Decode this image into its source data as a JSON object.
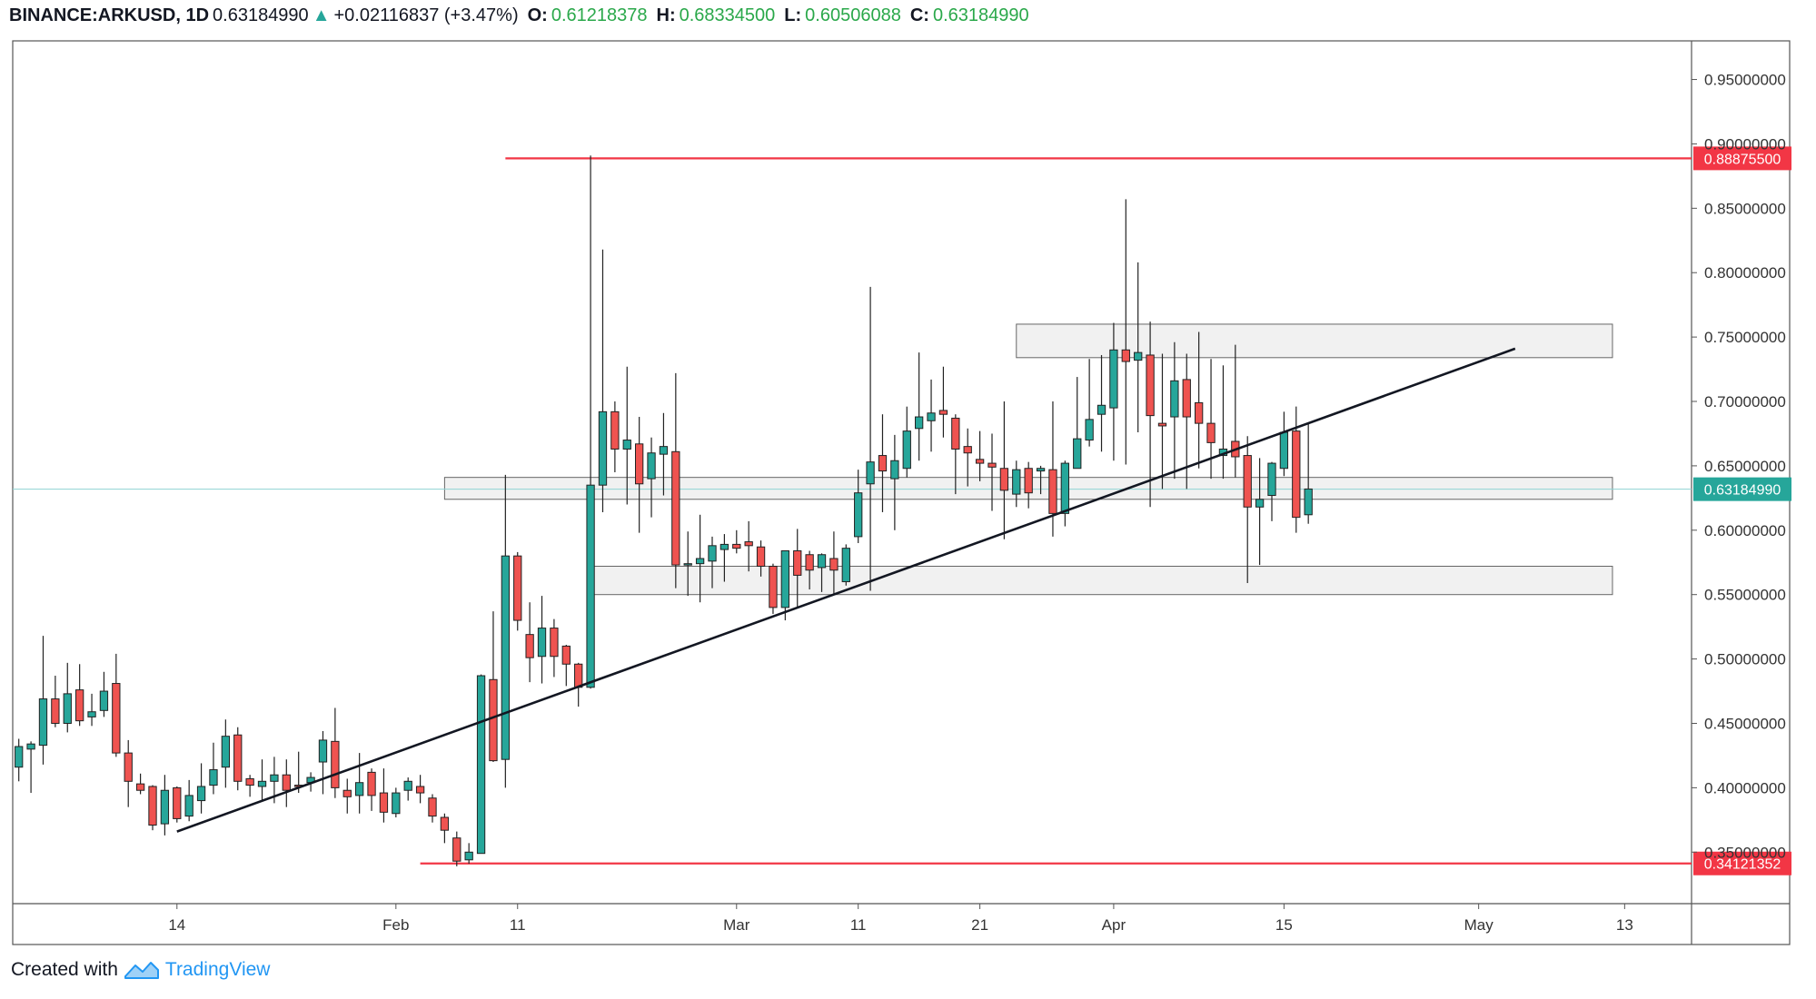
{
  "header": {
    "symbol": "BINANCE:ARKUSD, 1D",
    "last": "0.63184990",
    "change_arrow": "▲",
    "change": "+0.02116837 (+3.47%)",
    "o_label": "O:",
    "o_value": "0.61218378",
    "h_label": "H:",
    "h_value": "0.68334500",
    "l_label": "L:",
    "l_value": "0.60506088",
    "c_label": "C:",
    "c_value": "0.63184990"
  },
  "footer": {
    "created_with": "Created with",
    "brand": "TradingView",
    "logo_icon": "tradingview-logo-icon"
  },
  "colors": {
    "up": "#26a69a",
    "down": "#ef5350",
    "level_line": "#f23645",
    "trendline": "#131722",
    "zone_fill": "#e6e6e6",
    "last_price": "#26a69a"
  },
  "chart_data": {
    "type": "candlestick",
    "ylim": [
      0.31,
      0.98
    ],
    "y_ticks": [
      "0.95000000",
      "0.90000000",
      "0.85000000",
      "0.80000000",
      "0.75000000",
      "0.70000000",
      "0.65000000",
      "0.60000000",
      "0.55000000",
      "0.50000000",
      "0.45000000",
      "0.40000000",
      "0.35000000"
    ],
    "x_labels": [
      {
        "text": "14",
        "day": 13
      },
      {
        "text": "Feb",
        "day": 31
      },
      {
        "text": "11",
        "day": 41
      },
      {
        "text": "Mar",
        "day": 59
      },
      {
        "text": "11",
        "day": 69
      },
      {
        "text": "21",
        "day": 79
      },
      {
        "text": "Apr",
        "day": 90
      },
      {
        "text": "15",
        "day": 104
      },
      {
        "text": "May",
        "day": 120
      },
      {
        "text": "13",
        "day": 132
      }
    ],
    "x_domain": [
      -0.5,
      137.5
    ],
    "candles": [
      [
        0,
        0.416,
        0.438,
        0.405,
        0.432
      ],
      [
        1,
        0.43,
        0.436,
        0.396,
        0.434
      ],
      [
        2,
        0.433,
        0.518,
        0.418,
        0.469
      ],
      [
        3,
        0.469,
        0.487,
        0.447,
        0.45
      ],
      [
        4,
        0.45,
        0.497,
        0.443,
        0.473
      ],
      [
        5,
        0.476,
        0.496,
        0.448,
        0.452
      ],
      [
        6,
        0.455,
        0.473,
        0.448,
        0.459
      ],
      [
        7,
        0.46,
        0.49,
        0.455,
        0.475
      ],
      [
        8,
        0.481,
        0.504,
        0.424,
        0.427
      ],
      [
        9,
        0.427,
        0.437,
        0.385,
        0.405
      ],
      [
        10,
        0.403,
        0.411,
        0.395,
        0.398
      ],
      [
        11,
        0.401,
        0.402,
        0.367,
        0.371
      ],
      [
        12,
        0.372,
        0.41,
        0.363,
        0.398
      ],
      [
        13,
        0.4,
        0.401,
        0.373,
        0.376
      ],
      [
        14,
        0.378,
        0.406,
        0.374,
        0.394
      ],
      [
        15,
        0.39,
        0.419,
        0.38,
        0.401
      ],
      [
        16,
        0.402,
        0.435,
        0.395,
        0.414
      ],
      [
        17,
        0.416,
        0.453,
        0.4,
        0.44
      ],
      [
        18,
        0.441,
        0.447,
        0.398,
        0.405
      ],
      [
        19,
        0.407,
        0.41,
        0.393,
        0.402
      ],
      [
        20,
        0.401,
        0.422,
        0.39,
        0.405
      ],
      [
        21,
        0.405,
        0.424,
        0.388,
        0.41
      ],
      [
        22,
        0.41,
        0.422,
        0.385,
        0.398
      ],
      [
        23,
        0.402,
        0.428,
        0.396,
        0.401
      ],
      [
        24,
        0.404,
        0.412,
        0.397,
        0.408
      ],
      [
        25,
        0.42,
        0.444,
        0.395,
        0.437
      ],
      [
        26,
        0.436,
        0.462,
        0.392,
        0.4
      ],
      [
        27,
        0.398,
        0.407,
        0.38,
        0.393
      ],
      [
        28,
        0.394,
        0.427,
        0.38,
        0.404
      ],
      [
        29,
        0.412,
        0.415,
        0.382,
        0.394
      ],
      [
        30,
        0.396,
        0.415,
        0.373,
        0.381
      ],
      [
        31,
        0.38,
        0.4,
        0.377,
        0.396
      ],
      [
        32,
        0.398,
        0.408,
        0.39,
        0.405
      ],
      [
        33,
        0.401,
        0.41,
        0.388,
        0.396
      ],
      [
        34,
        0.392,
        0.395,
        0.373,
        0.378
      ],
      [
        35,
        0.377,
        0.38,
        0.357,
        0.367
      ],
      [
        36,
        0.361,
        0.366,
        0.339,
        0.343
      ],
      [
        37,
        0.344,
        0.357,
        0.341,
        0.35
      ],
      [
        38,
        0.349,
        0.488,
        0.349,
        0.487
      ],
      [
        39,
        0.484,
        0.537,
        0.42,
        0.421
      ],
      [
        40,
        0.422,
        0.643,
        0.4,
        0.58
      ],
      [
        41,
        0.58,
        0.583,
        0.522,
        0.53
      ],
      [
        42,
        0.519,
        0.544,
        0.482,
        0.501
      ],
      [
        43,
        0.502,
        0.549,
        0.481,
        0.524
      ],
      [
        44,
        0.524,
        0.531,
        0.486,
        0.502
      ],
      [
        45,
        0.51,
        0.511,
        0.479,
        0.496
      ],
      [
        46,
        0.496,
        0.497,
        0.463,
        0.478
      ],
      [
        47,
        0.478,
        0.891,
        0.477,
        0.635
      ],
      [
        48,
        0.635,
        0.818,
        0.614,
        0.692
      ],
      [
        49,
        0.692,
        0.7,
        0.645,
        0.663
      ],
      [
        50,
        0.663,
        0.727,
        0.62,
        0.67
      ],
      [
        51,
        0.667,
        0.688,
        0.598,
        0.636
      ],
      [
        52,
        0.64,
        0.672,
        0.61,
        0.66
      ],
      [
        53,
        0.659,
        0.691,
        0.627,
        0.665
      ],
      [
        54,
        0.661,
        0.722,
        0.555,
        0.573
      ],
      [
        55,
        0.573,
        0.599,
        0.549,
        0.574
      ],
      [
        56,
        0.574,
        0.612,
        0.544,
        0.578
      ],
      [
        57,
        0.576,
        0.595,
        0.555,
        0.588
      ],
      [
        58,
        0.585,
        0.597,
        0.56,
        0.589
      ],
      [
        59,
        0.589,
        0.6,
        0.582,
        0.586
      ],
      [
        60,
        0.591,
        0.607,
        0.568,
        0.588
      ],
      [
        61,
        0.587,
        0.592,
        0.564,
        0.572
      ],
      [
        62,
        0.572,
        0.574,
        0.535,
        0.54
      ],
      [
        63,
        0.54,
        0.583,
        0.53,
        0.584
      ],
      [
        64,
        0.584,
        0.601,
        0.54,
        0.565
      ],
      [
        65,
        0.581,
        0.584,
        0.554,
        0.569
      ],
      [
        66,
        0.571,
        0.582,
        0.552,
        0.581
      ],
      [
        67,
        0.578,
        0.599,
        0.55,
        0.569
      ],
      [
        68,
        0.56,
        0.589,
        0.557,
        0.586
      ],
      [
        69,
        0.595,
        0.647,
        0.59,
        0.629
      ],
      [
        70,
        0.636,
        0.789,
        0.553,
        0.653
      ],
      [
        71,
        0.658,
        0.69,
        0.614,
        0.646
      ],
      [
        72,
        0.64,
        0.674,
        0.6,
        0.654
      ],
      [
        73,
        0.648,
        0.696,
        0.641,
        0.677
      ],
      [
        74,
        0.679,
        0.738,
        0.654,
        0.688
      ],
      [
        75,
        0.685,
        0.717,
        0.661,
        0.691
      ],
      [
        76,
        0.693,
        0.727,
        0.672,
        0.69
      ],
      [
        77,
        0.687,
        0.69,
        0.628,
        0.663
      ],
      [
        78,
        0.665,
        0.679,
        0.634,
        0.66
      ],
      [
        79,
        0.655,
        0.677,
        0.638,
        0.652
      ],
      [
        80,
        0.652,
        0.675,
        0.615,
        0.649
      ],
      [
        81,
        0.648,
        0.7,
        0.593,
        0.631
      ],
      [
        82,
        0.628,
        0.654,
        0.618,
        0.647
      ],
      [
        83,
        0.648,
        0.653,
        0.617,
        0.629
      ],
      [
        84,
        0.646,
        0.65,
        0.628,
        0.648
      ],
      [
        85,
        0.647,
        0.7,
        0.595,
        0.613
      ],
      [
        86,
        0.613,
        0.654,
        0.603,
        0.652
      ],
      [
        87,
        0.648,
        0.719,
        0.649,
        0.671
      ],
      [
        88,
        0.67,
        0.733,
        0.665,
        0.686
      ],
      [
        89,
        0.69,
        0.736,
        0.661,
        0.697
      ],
      [
        90,
        0.695,
        0.761,
        0.654,
        0.74
      ],
      [
        91,
        0.74,
        0.857,
        0.651,
        0.731
      ],
      [
        92,
        0.732,
        0.808,
        0.676,
        0.738
      ],
      [
        93,
        0.736,
        0.762,
        0.618,
        0.689
      ],
      [
        94,
        0.683,
        0.737,
        0.632,
        0.681
      ],
      [
        95,
        0.688,
        0.746,
        0.64,
        0.716
      ],
      [
        96,
        0.717,
        0.737,
        0.632,
        0.688
      ],
      [
        97,
        0.699,
        0.754,
        0.648,
        0.683
      ],
      [
        98,
        0.683,
        0.733,
        0.64,
        0.668
      ],
      [
        99,
        0.658,
        0.728,
        0.64,
        0.663
      ],
      [
        100,
        0.669,
        0.744,
        0.641,
        0.657
      ],
      [
        101,
        0.658,
        0.673,
        0.559,
        0.618
      ],
      [
        102,
        0.618,
        0.656,
        0.573,
        0.624
      ],
      [
        103,
        0.627,
        0.653,
        0.607,
        0.652
      ],
      [
        104,
        0.648,
        0.692,
        0.642,
        0.676
      ],
      [
        105,
        0.677,
        0.696,
        0.598,
        0.61
      ],
      [
        106,
        0.612,
        0.683,
        0.605,
        0.632
      ]
    ],
    "levels": [
      {
        "value": 0.888755,
        "label": "0.88875500",
        "from_day": 40
      },
      {
        "value": 0.34121352,
        "label": "0.34121352",
        "from_day": 33
      }
    ],
    "last_price": {
      "value": 0.6318499,
      "label": "0.63184990"
    },
    "zones": [
      {
        "y_top": 0.76,
        "y_bottom": 0.734,
        "from_day": 82,
        "to_day": 131
      },
      {
        "y_top": 0.641,
        "y_bottom": 0.624,
        "from_day": 35,
        "to_day": 131
      },
      {
        "y_top": 0.572,
        "y_bottom": 0.55,
        "from_day": 47,
        "to_day": 131
      }
    ],
    "trendline": {
      "x1": 13,
      "y1": 0.366,
      "x2": 123,
      "y2": 0.741
    }
  }
}
